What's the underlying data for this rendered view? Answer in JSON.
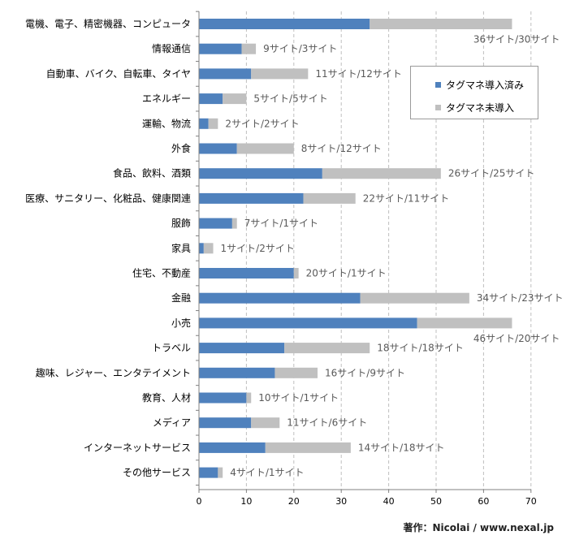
{
  "chart_data": {
    "type": "bar",
    "orientation": "horizontal",
    "stacked": true,
    "categories": [
      "電機、電子、精密機器、コンピュータ",
      "情報通信",
      "自動車、バイク、自転車、タイヤ",
      "エネルギー",
      "運輸、物流",
      "外食",
      "食品、飲料、酒類",
      "医療、サニタリー、化粧品、健康関連",
      "服飾",
      "家具",
      "住宅、不動産",
      "金融",
      "小売",
      "トラベル",
      "趣味、レジャー、エンタテイメント",
      "教育、人材",
      "メディア",
      "インターネットサービス",
      "その他サービス"
    ],
    "series": [
      {
        "name": "タグマネ導入済み",
        "color": "#4f81bd",
        "values": [
          36,
          9,
          11,
          5,
          2,
          8,
          26,
          22,
          7,
          1,
          20,
          34,
          46,
          18,
          16,
          10,
          11,
          14,
          4
        ]
      },
      {
        "name": "タグマネ未導入",
        "color": "#c0c0c0",
        "values": [
          30,
          3,
          12,
          5,
          2,
          12,
          25,
          11,
          1,
          2,
          1,
          23,
          20,
          18,
          9,
          1,
          6,
          18,
          1
        ]
      }
    ],
    "data_labels": [
      "36サイト/30サイト",
      "9サイト/3サイト",
      "11サイト/12サイト",
      "5サイト/5サイト",
      "2サイト/2サイト",
      "8サイト/12サイト",
      "26サイト/25サイト",
      "22サイト/11サイト",
      "7サイト/1サイト",
      "1サイト/2サイト",
      "20サイト/1サイト",
      "34サイト/23サイト",
      "46サイト/20サイト",
      "18サイト/18サイト",
      "16サイト/9サイト",
      "10サイト/1サイト",
      "11サイト/6サイト",
      "14サイト/18サイト",
      "4サイト/1サイト"
    ],
    "x_ticks": [
      0,
      10,
      20,
      30,
      40,
      50,
      60,
      70
    ],
    "xlim": [
      0,
      70
    ],
    "grid": "vertical dashed",
    "legend_position": "top-right"
  },
  "legend": {
    "items": [
      {
        "label": "タグマネ導入済み",
        "color": "#4f81bd"
      },
      {
        "label": "タグマネ未導入",
        "color": "#c0c0c0"
      }
    ]
  },
  "credit": "著作：Nicolai / www.nexal.jp"
}
